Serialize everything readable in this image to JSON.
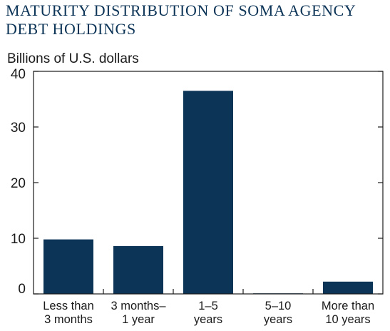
{
  "colors": {
    "bar": "#0c3457",
    "title": "#0c3457",
    "axis": "#1a1a1a"
  },
  "chart_data": {
    "type": "bar",
    "title_lines": [
      "MATURITY DISTRIBUTION OF SOMA AGENCY",
      "DEBT HOLDINGS"
    ],
    "ylabel": "Billions of U.S. dollars",
    "xlabel": "",
    "categories": [
      [
        "Less than",
        "3 months"
      ],
      [
        "3 months–",
        "1 year"
      ],
      [
        "1–5",
        "years"
      ],
      [
        "5–10",
        "years"
      ],
      [
        "More than",
        "10 years"
      ]
    ],
    "values": [
      9.8,
      8.6,
      36.5,
      0.1,
      2.2
    ],
    "ylim": [
      0,
      40
    ],
    "yticks": [
      0,
      10,
      20,
      30,
      40
    ],
    "grid": false
  }
}
